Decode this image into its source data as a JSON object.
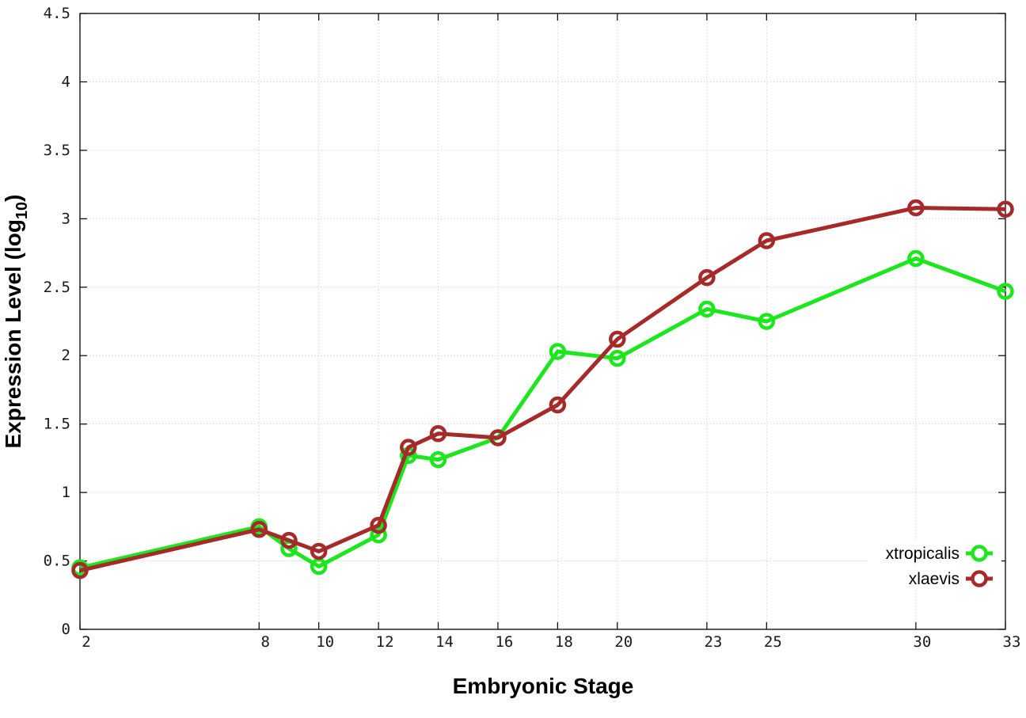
{
  "chart_data": {
    "type": "line",
    "xlabel": "Embryonic Stage",
    "ylabel_main": "Expression Level (log",
    "ylabel_sub": "10",
    "ylabel_close": ")",
    "xlim": [
      2,
      33
    ],
    "ylim": [
      0,
      4.5
    ],
    "grid": true,
    "legend_position": "bottom-right",
    "x_ticks": [
      2,
      8,
      10,
      12,
      14,
      16,
      18,
      20,
      23,
      25,
      30,
      33
    ],
    "x_tick_labels": [
      "2",
      "8",
      "10",
      "12",
      "14",
      "16",
      "18",
      "20",
      "23",
      "25",
      "30",
      "33"
    ],
    "y_ticks": [
      0,
      0.5,
      1,
      1.5,
      2,
      2.5,
      3,
      3.5,
      4,
      4.5
    ],
    "y_tick_labels": [
      "0",
      "0.5",
      "1",
      "1.5",
      "2",
      "2.5",
      "3",
      "3.5",
      "4",
      "4.5"
    ],
    "series": [
      {
        "name": "xtropicalis",
        "color": "#1ee61e",
        "x": [
          2,
          8,
          9,
          10,
          12,
          13,
          14,
          16,
          18,
          20,
          23,
          25,
          30,
          33
        ],
        "y": [
          0.45,
          0.75,
          0.59,
          0.46,
          0.69,
          1.27,
          1.24,
          1.4,
          2.03,
          1.98,
          2.34,
          2.25,
          2.71,
          2.47
        ]
      },
      {
        "name": "xlaevis",
        "color": "#a52a2a",
        "x": [
          2,
          8,
          9,
          10,
          12,
          13,
          14,
          16,
          18,
          20,
          23,
          25,
          30,
          33
        ],
        "y": [
          0.43,
          0.73,
          0.65,
          0.57,
          0.76,
          1.33,
          1.43,
          1.4,
          1.64,
          2.12,
          2.57,
          2.84,
          3.08,
          3.07
        ]
      }
    ]
  }
}
